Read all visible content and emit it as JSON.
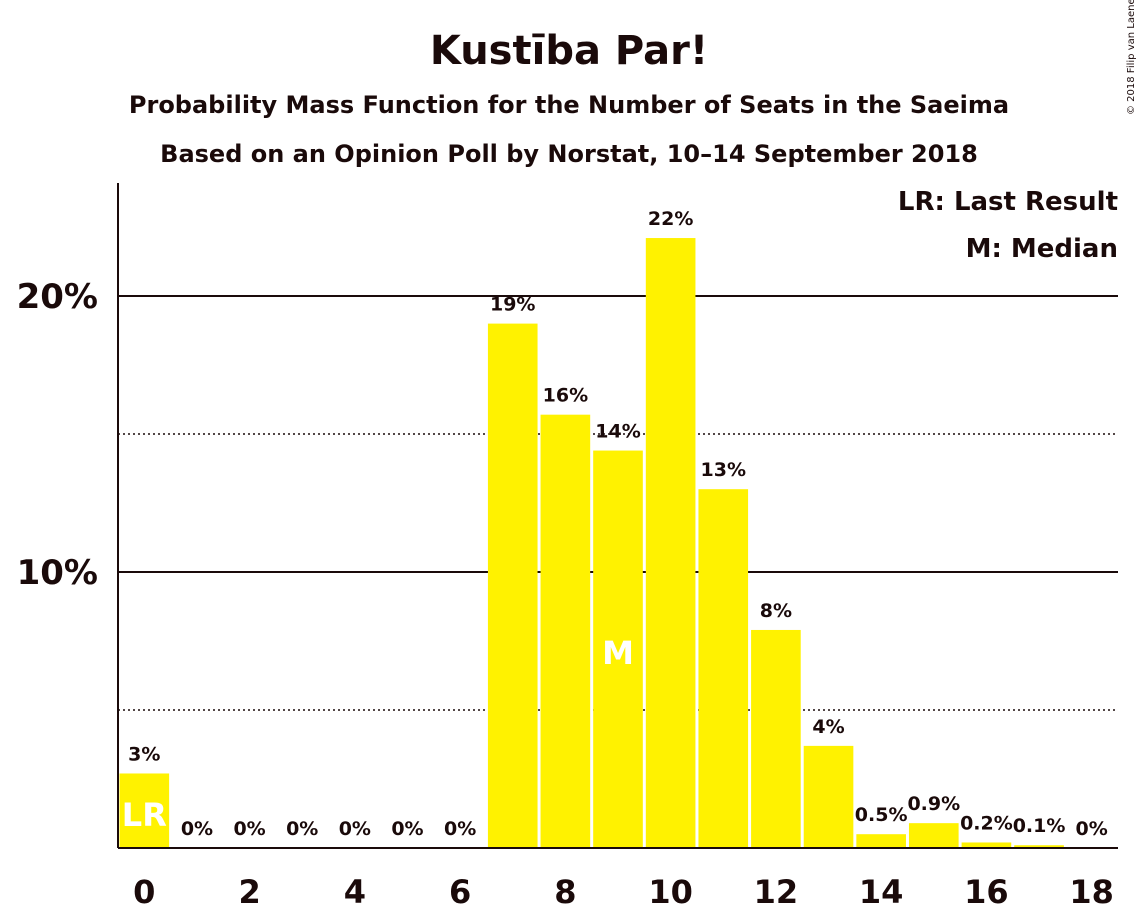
{
  "chart_data": {
    "type": "bar",
    "title": "Kustība Par!",
    "subtitle": "Probability Mass Function for the Number of Seats in the Saeima",
    "subtitle2": "Based on an Opinion Poll by Norstat, 10–14 September 2018",
    "copyright": "© 2018 Filip van Laenen",
    "legend": {
      "placement": "top-right",
      "items": [
        "LR: Last Result",
        "M: Median"
      ]
    },
    "x": [
      0,
      1,
      2,
      3,
      4,
      5,
      6,
      7,
      8,
      9,
      10,
      11,
      12,
      13,
      14,
      15,
      16,
      17,
      18
    ],
    "x_tick_labels": [
      "0",
      "2",
      "4",
      "6",
      "8",
      "10",
      "12",
      "14",
      "16",
      "18"
    ],
    "x_tick_values": [
      0,
      2,
      4,
      6,
      8,
      10,
      12,
      14,
      16,
      18
    ],
    "values": [
      2.7,
      0,
      0,
      0,
      0,
      0,
      0,
      19.0,
      15.7,
      14.4,
      22.1,
      13.0,
      7.9,
      3.7,
      0.5,
      0.9,
      0.2,
      0.1,
      0
    ],
    "labels": [
      "3%",
      "0%",
      "0%",
      "0%",
      "0%",
      "0%",
      "0%",
      "19%",
      "16%",
      "14%",
      "22%",
      "13%",
      "8%",
      "4%",
      "0.5%",
      "0.9%",
      "0.2%",
      "0.1%",
      "0%"
    ],
    "y_ticks": [
      {
        "value": 10,
        "label": "10%"
      },
      {
        "value": 20,
        "label": "20%"
      }
    ],
    "y_minor_gridlines": [
      5,
      15
    ],
    "ylim": [
      0,
      24
    ],
    "last_result_seat": 0,
    "last_result_marker": "LR",
    "median_seat": 9,
    "median_marker": "M",
    "bar_color": "#fff200",
    "grid": true
  }
}
